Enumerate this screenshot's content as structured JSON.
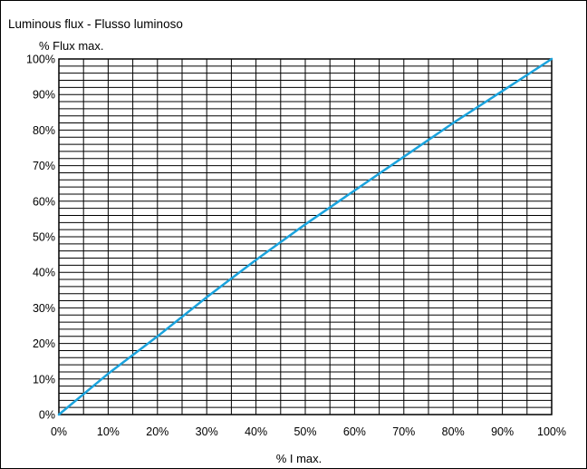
{
  "chart_data": {
    "type": "line",
    "title": "Luminous flux - Flusso luminoso",
    "ylabel": "% Flux max.",
    "xlabel": "% I max.",
    "xlim": [
      0,
      100
    ],
    "ylim": [
      0,
      100
    ],
    "grid": true,
    "x_ticks": [
      "0%",
      "10%",
      "20%",
      "30%",
      "40%",
      "50%",
      "60%",
      "70%",
      "80%",
      "90%",
      "100%"
    ],
    "y_ticks": [
      "0%",
      "10%",
      "20%",
      "30%",
      "40%",
      "50%",
      "60%",
      "70%",
      "80%",
      "90%",
      "100%"
    ],
    "series": [
      {
        "color": "#1aa3dd",
        "x": [
          0,
          10,
          20,
          30,
          40,
          50,
          60,
          70,
          80,
          90,
          100
        ],
        "y": [
          0,
          11.5,
          22,
          33,
          43.5,
          53.5,
          63,
          72.5,
          82,
          91,
          100
        ]
      }
    ]
  }
}
